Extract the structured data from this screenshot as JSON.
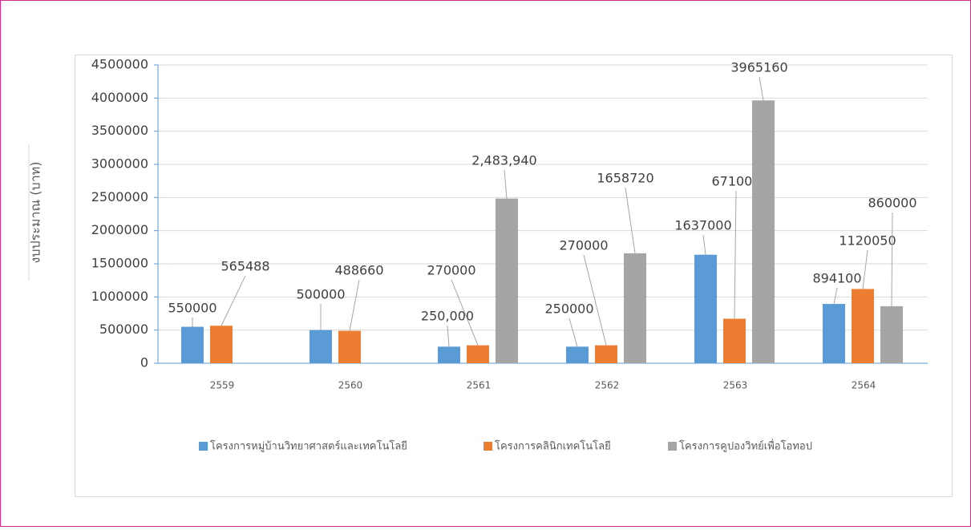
{
  "chart_data": {
    "type": "bar",
    "y_label": "งบประมาณ (บาท)",
    "categories": [
      "2559",
      "2560",
      "2561",
      "2562",
      "2563",
      "2564"
    ],
    "series": [
      {
        "name": "โครงการหมู่บ้านวิทยาศาสตร์และเทคโนโลยี",
        "color": "#5b9bd5",
        "values": [
          550000,
          500000,
          250000,
          250000,
          1637000,
          894100
        ],
        "value_labels": [
          "550000",
          "500000",
          "250,000",
          "250000",
          "1637000",
          "894100"
        ]
      },
      {
        "name": "โครงการคลินิกเทคโนโลยี",
        "color": "#ed7d31",
        "values": [
          565488,
          488660,
          270000,
          270000,
          671000,
          1120050
        ]
      },
      {
        "name": "โครงการคูปองวิทย์เพื่อโอทอป",
        "color": "#a5a5a5",
        "values": [
          null,
          null,
          2483940,
          1658720,
          3965160,
          860000
        ],
        "value_labels": [
          null,
          null,
          "2,483,940",
          "1658720",
          "3965160",
          "860000"
        ]
      }
    ],
    "ylim": [
      0,
      4500000
    ],
    "yticks": [
      0,
      500000,
      1000000,
      1500000,
      2000000,
      2500000,
      3000000,
      3500000,
      4000000,
      4500000
    ],
    "grid": true,
    "legend": "bottom"
  }
}
